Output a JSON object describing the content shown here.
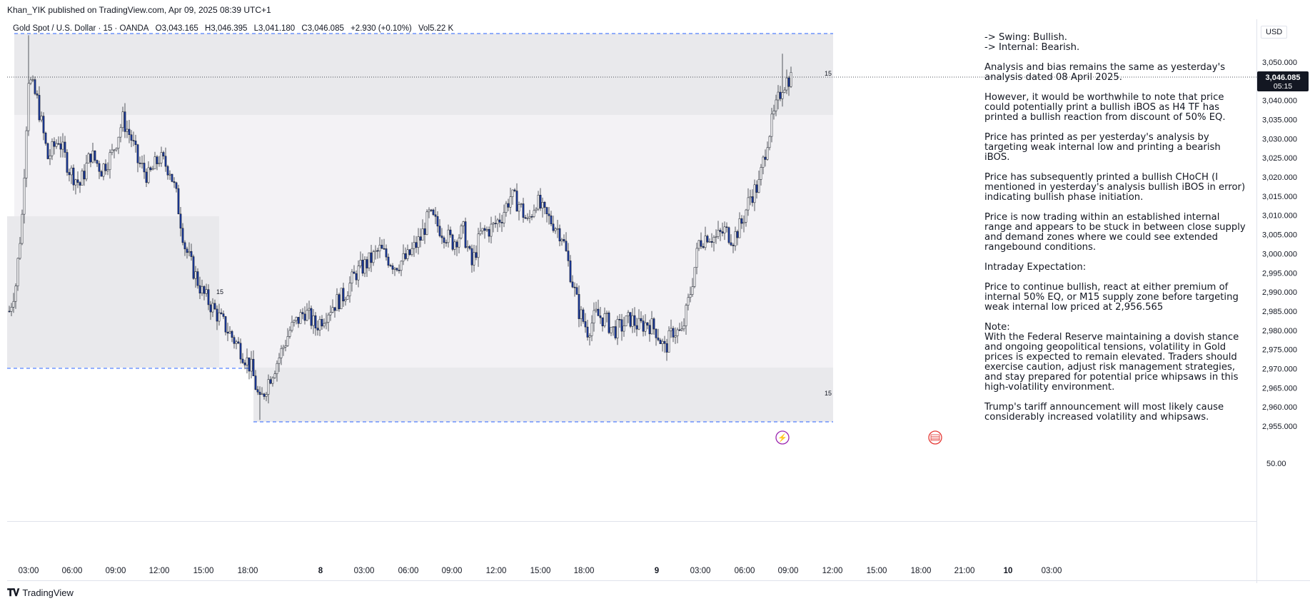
{
  "header": {
    "published": "Khan_YIK published on TradingView.com, Apr 09, 2025 08:39 UTC+1",
    "symbol": "Gold Spot / U.S. Dollar · 15 · OANDA",
    "open": "O3,043.165",
    "high": "H3,046.395",
    "low": "L3,041.180",
    "close": "C3,046.085",
    "change": "+2.930 (+0.10%)",
    "volume": "Vol5.22 K"
  },
  "currency": "USD",
  "last_price": {
    "value": "3,046.085",
    "countdown": "05:15"
  },
  "notes": [
    "-> Swing:  Bullish.",
    "-> Internal:  Bearish.",
    "Analysis and bias remains the same as yesterday's analysis dated 08 April 2025.",
    "However, it would be worthwhile to note that price could potentially print a bullish iBOS as H4 TF has printed a bullish reaction from discount of 50% EQ.",
    "Price has printed as per yesterday's analysis by targeting weak internal low and printing a bearish iBOS.",
    "Price has subsequently printed a bullish CHoCH (I mentioned in yesterday's analysis bullish iBOS in error) indicating bullish phase initiation.",
    "Price is now trading within an established internal range and appears to be stuck in between close supply and demand zones where we could see extended rangebound conditions.",
    "Intraday Expectation:",
    "Price to continue bullish, react at either premium of internal 50% EQ, or M15 supply zone before targeting weak internal low priced at 2,956.565",
    "Note:",
    "With the Federal Reserve maintaining a dovish stance and ongoing geopolitical tensions, volatility in Gold prices is expected to remain elevated. Traders should exercise caution, adjust risk management strategies, and stay prepared for potential price whipsaws in this high-volatility environment.",
    "Trump's tariff announcement will most likely cause considerably increased volatility and whipsaws."
  ],
  "footer": {
    "brand": "TradingView"
  },
  "zone_labels": [
    "15",
    "15",
    "15"
  ],
  "colors": {
    "up_candle": "#ffffff",
    "down_candle": "#1a3a9e",
    "wick": "#131722",
    "zone_fill": "#e9e9ec",
    "zone_fill_light": "#f3f2f5",
    "dashed_line": "#2962ff",
    "lightning": "#9c27b0",
    "flag": "#e53935"
  },
  "chart_data": {
    "type": "candlestick",
    "ylim": [
      2950,
      3057
    ],
    "y_ticks": [
      "3,050.000",
      "3,045.000",
      "3,040.000",
      "3,035.000",
      "3,030.000",
      "3,025.000",
      "3,020.000",
      "3,015.000",
      "3,010.000",
      "3,005.000",
      "3,000.000",
      "2,995.000",
      "2,990.000",
      "2,985.000",
      "2,980.000",
      "2,975.000",
      "2,970.000",
      "2,965.000",
      "2,960.000",
      "2,955.000"
    ],
    "volume_tick": "50.00",
    "x_ticks": [
      "03:00",
      "06:00",
      "09:00",
      "12:00",
      "15:00",
      "18:00",
      "8",
      "03:00",
      "06:00",
      "09:00",
      "12:00",
      "15:00",
      "18:00",
      "9",
      "03:00",
      "06:00",
      "09:00",
      "12:00",
      "15:00",
      "18:00",
      "21:00",
      "10",
      "03:00"
    ],
    "close_keypoints": [
      [
        0,
        2985
      ],
      [
        3,
        2992
      ],
      [
        6,
        3010
      ],
      [
        9,
        3046
      ],
      [
        13,
        3040
      ],
      [
        18,
        3025
      ],
      [
        23,
        3030
      ],
      [
        28,
        3022
      ],
      [
        33,
        3018
      ],
      [
        38,
        3026
      ],
      [
        43,
        3022
      ],
      [
        48,
        3026
      ],
      [
        53,
        3035
      ],
      [
        57,
        3030
      ],
      [
        60,
        3024
      ],
      [
        65,
        3020
      ],
      [
        70,
        3025
      ],
      [
        75,
        3022
      ],
      [
        78,
        3015
      ],
      [
        82,
        3002
      ],
      [
        85,
        2997
      ],
      [
        90,
        2990
      ],
      [
        96,
        2985
      ],
      [
        102,
        2980
      ],
      [
        108,
        2975
      ],
      [
        113,
        2970
      ],
      [
        117,
        2961
      ],
      [
        121,
        2967
      ],
      [
        126,
        2973
      ],
      [
        131,
        2980
      ],
      [
        138,
        2985
      ],
      [
        143,
        2981
      ],
      [
        150,
        2986
      ],
      [
        156,
        2989
      ],
      [
        162,
        2995
      ],
      [
        168,
        2998
      ],
      [
        173,
        3001
      ],
      [
        180,
        2997
      ],
      [
        186,
        2999
      ],
      [
        192,
        3004
      ],
      [
        196,
        3010
      ],
      [
        202,
        3006
      ],
      [
        207,
        3003
      ],
      [
        212,
        3006
      ],
      [
        216,
        2997
      ],
      [
        220,
        3005
      ],
      [
        226,
        3007
      ],
      [
        230,
        3010
      ],
      [
        234,
        3015
      ],
      [
        238,
        3013
      ],
      [
        242,
        3008
      ],
      [
        246,
        3014
      ],
      [
        250,
        3010
      ],
      [
        254,
        3008
      ],
      [
        258,
        3005
      ],
      [
        262,
        2995
      ],
      [
        266,
        2985
      ],
      [
        270,
        2980
      ],
      [
        274,
        2984
      ],
      [
        278,
        2983
      ],
      [
        282,
        2980
      ],
      [
        286,
        2981
      ],
      [
        290,
        2983
      ],
      [
        294,
        2981
      ],
      [
        298,
        2982
      ],
      [
        302,
        2980
      ],
      [
        306,
        2975
      ],
      [
        310,
        2980
      ],
      [
        314,
        2979
      ],
      [
        318,
        2990
      ],
      [
        322,
        3003
      ],
      [
        326,
        3005
      ],
      [
        330,
        3004
      ],
      [
        334,
        3006
      ],
      [
        338,
        3004
      ],
      [
        342,
        3008
      ],
      [
        346,
        3015
      ],
      [
        350,
        3018
      ],
      [
        354,
        3030
      ],
      [
        357,
        3036
      ],
      [
        361,
        3044
      ],
      [
        364,
        3046
      ]
    ],
    "high": 3052.2,
    "low": 2956.6,
    "last": 3046.085
  }
}
